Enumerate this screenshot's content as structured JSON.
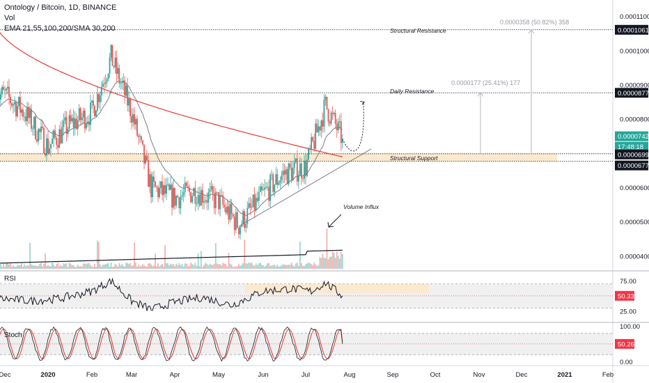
{
  "header": {
    "title": "Ontology / Bitcoin, 1D, BINANCE",
    "volume_label": "Vol",
    "ma_label": "EMA 21,55,100,200/SMA 30,200"
  },
  "annotations": {
    "structural_resistance": "Structural Resistance",
    "daily_resistance": "Daily Resistance",
    "structural_support": "Structural Support",
    "volume_influx": "Volume Influx",
    "measure_top": "0.0000358 (50.82%) 358",
    "measure_mid": "0.0000177 (25.41%) 177"
  },
  "chart_data": [
    {
      "type": "candlestick",
      "title": "Ontology / Bitcoin, 1D, BINANCE",
      "x_labels": [
        "Dec",
        "2020",
        "Feb",
        "Mar",
        "Apr",
        "May",
        "Jun",
        "Jul",
        "Aug",
        "Sep",
        "Oct",
        "Nov",
        "Dec",
        "2021",
        "Feb"
      ],
      "x_label_dates": [
        "2019-12-01",
        "2020-01-01",
        "2020-02-01",
        "2020-03-01",
        "2020-04-01",
        "2020-05-01",
        "2020-06-01",
        "2020-07-01",
        "2020-08-01",
        "2020-09-01",
        "2020-10-01",
        "2020-11-01",
        "2020-12-01",
        "2021-01-01",
        "2021-02-01"
      ],
      "y_ticks": [
        "0.0001100",
        "0.0001000",
        "0.0000900",
        "0.0000800",
        "0.0000600",
        "0.0000500",
        "0.0000400"
      ],
      "ylim": [
        3.57e-05,
        0.0001148
      ],
      "price_levels": [
        {
          "name": "Structural Resistance",
          "value": 0.0001061,
          "label": "0.0001061"
        },
        {
          "name": "Daily Resistance",
          "value": 8.77e-05,
          "label": "0.0000877"
        },
        {
          "name": "Structural Support top",
          "value": 6.99e-05,
          "label": "0.0000699"
        },
        {
          "name": "Structural Support bottom",
          "value": 6.77e-05,
          "label": "0.0000677"
        }
      ],
      "last_price": {
        "value": 7.42e-05,
        "label": "0.0000742",
        "countdown": "17:48:18"
      },
      "approx_closes": [
        {
          "date": "2019-12-01",
          "close": 8.7e-05
        },
        {
          "date": "2019-12-15",
          "close": 8.2e-05
        },
        {
          "date": "2020-01-01",
          "close": 7.2e-05
        },
        {
          "date": "2020-01-15",
          "close": 7.8e-05
        },
        {
          "date": "2020-02-01",
          "close": 8.2e-05
        },
        {
          "date": "2020-02-15",
          "close": 9.8e-05
        },
        {
          "date": "2020-03-01",
          "close": 8.2e-05
        },
        {
          "date": "2020-03-15",
          "close": 6e-05
        },
        {
          "date": "2020-04-01",
          "close": 5.7e-05
        },
        {
          "date": "2020-04-15",
          "close": 5.9e-05
        },
        {
          "date": "2020-05-01",
          "close": 5.6e-05
        },
        {
          "date": "2020-05-15",
          "close": 4.9e-05
        },
        {
          "date": "2020-06-01",
          "close": 5.8e-05
        },
        {
          "date": "2020-06-15",
          "close": 6.4e-05
        },
        {
          "date": "2020-07-01",
          "close": 6.6e-05
        },
        {
          "date": "2020-07-15",
          "close": 8.4e-05
        },
        {
          "date": "2020-07-27",
          "close": 7.42e-05
        }
      ]
    },
    {
      "type": "line",
      "title": "RSI",
      "y_ticks": [
        "75.00",
        "25.00"
      ],
      "ylim": [
        10,
        88
      ],
      "overbought": 70,
      "oversold": 30,
      "last_value": {
        "value": 50.33,
        "label": "50.33"
      },
      "approx_values": [
        {
          "date": "2019-12-01",
          "value": 45
        },
        {
          "date": "2019-12-20",
          "value": 42
        },
        {
          "date": "2020-01-10",
          "value": 46
        },
        {
          "date": "2020-02-01",
          "value": 58
        },
        {
          "date": "2020-02-15",
          "value": 75
        },
        {
          "date": "2020-03-01",
          "value": 42
        },
        {
          "date": "2020-03-15",
          "value": 28
        },
        {
          "date": "2020-04-01",
          "value": 40
        },
        {
          "date": "2020-04-20",
          "value": 48
        },
        {
          "date": "2020-05-10",
          "value": 35
        },
        {
          "date": "2020-06-01",
          "value": 58
        },
        {
          "date": "2020-06-20",
          "value": 62
        },
        {
          "date": "2020-07-05",
          "value": 58
        },
        {
          "date": "2020-07-15",
          "value": 72
        },
        {
          "date": "2020-07-27",
          "value": 50.33
        }
      ]
    },
    {
      "type": "line",
      "title": "Stoch",
      "y_ticks": [
        "100.00",
        "0.00"
      ],
      "ylim": [
        -5,
        105
      ],
      "upper_band": 80,
      "lower_band": 20,
      "last_value": {
        "value": 50.26,
        "label": "50.26"
      }
    }
  ],
  "colors": {
    "up": "#26a69a",
    "down": "#ef5350",
    "ema_gray": "#787b86",
    "ema_red": "#e53935",
    "support_zone": "#fbe9d0",
    "rsi_band": "#f0f0f0",
    "tag_dark": "#131722",
    "tag_green": "#26a69a",
    "tag_red": "#f23645"
  }
}
